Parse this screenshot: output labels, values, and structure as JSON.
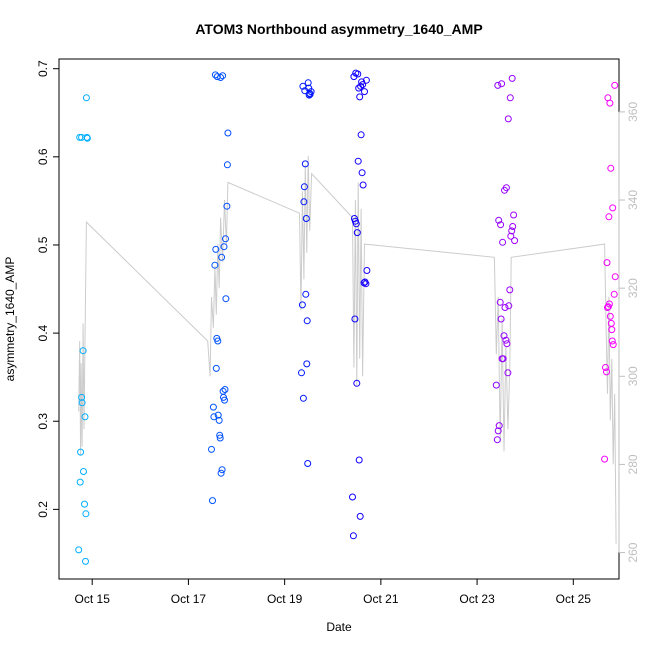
{
  "chart_data": {
    "type": "scatter",
    "title": "ATOM3 Northbound asymmetry_1640_AMP",
    "xlabel": "Date",
    "ylabel": "asymmetry_1640_AMP",
    "xlim": [
      14.31,
      25.95
    ],
    "ylim": [
      0.121,
      0.711
    ],
    "y_ticks": [
      "0.2",
      "0.3",
      "0.4",
      "0.5",
      "0.6",
      "0.7"
    ],
    "x_ticks": [
      {
        "value": 15,
        "label": "Oct 15"
      },
      {
        "value": 17,
        "label": "Oct 17"
      },
      {
        "value": 19,
        "label": "Oct 19"
      },
      {
        "value": 21,
        "label": "Oct 21"
      },
      {
        "value": 23,
        "label": "Oct 23"
      },
      {
        "value": 25,
        "label": "Oct 25"
      }
    ],
    "y2lim": [
      254,
      372
    ],
    "y2_ticks": [
      "260",
      "280",
      "300",
      "320",
      "340",
      "360"
    ],
    "y2_color": "#bfbfbf",
    "grid": false,
    "line_color": "#cccccc",
    "gradient_colors": [
      "#00bfff",
      "#0000ff",
      "#ff00ff"
    ],
    "secondary_series": {
      "name": "",
      "x": [
        14.72,
        14.74,
        14.76,
        14.77,
        14.79,
        14.81,
        14.83,
        14.86,
        14.88,
        17.4,
        17.45,
        17.48,
        17.52,
        17.55,
        17.58,
        17.61,
        17.64,
        17.67,
        17.71,
        17.75,
        17.79,
        17.82,
        19.31,
        19.34,
        19.37,
        19.4,
        19.43,
        19.46,
        19.49,
        19.52,
        19.56,
        20.41,
        20.44,
        20.47,
        20.5,
        20.53,
        20.56,
        20.59,
        20.62,
        20.66,
        23.36,
        23.4,
        23.44,
        23.48,
        23.52,
        23.56,
        23.6,
        23.64,
        23.68,
        23.71,
        25.65,
        25.68,
        25.71,
        25.74,
        25.77,
        25.8,
        25.83,
        25.86,
        25.89
      ],
      "values": [
        292,
        308,
        282,
        303,
        284,
        312,
        288,
        318,
        335,
        308,
        300,
        318,
        311,
        325,
        314,
        330,
        320,
        336,
        326,
        340,
        330,
        344,
        337,
        315,
        342,
        322,
        348,
        328,
        350,
        333,
        346,
        336,
        302,
        340,
        298,
        344,
        304,
        338,
        300,
        330,
        327,
        305,
        318,
        285,
        313,
        283,
        307,
        288,
        302,
        327,
        330,
        312,
        296,
        318,
        290,
        304,
        280,
        296,
        262
      ]
    },
    "series": [
      {
        "x": [
          14.72,
          14.75,
          14.76,
          14.78,
          14.79,
          14.81,
          14.82,
          14.84,
          14.85,
          14.86,
          14.87,
          14.88,
          14.89,
          14.9,
          14.74,
          14.78
        ],
        "values": [
          0.154,
          0.231,
          0.265,
          0.327,
          0.321,
          0.38,
          0.243,
          0.206,
          0.305,
          0.141,
          0.195,
          0.667,
          0.622,
          0.621,
          0.622,
          0.622
        ]
      },
      {
        "x": [
          17.48,
          17.5,
          17.52,
          17.53,
          17.55,
          17.57,
          17.58,
          17.59,
          17.61,
          17.62,
          17.64,
          17.65,
          17.66,
          17.68,
          17.7,
          17.72,
          17.73,
          17.75,
          17.76,
          17.78,
          17.8,
          17.81,
          17.82,
          17.56,
          17.6,
          17.67,
          17.71,
          17.74,
          17.77,
          17.69
        ],
        "values": [
          0.268,
          0.21,
          0.316,
          0.305,
          0.477,
          0.495,
          0.36,
          0.394,
          0.391,
          0.307,
          0.301,
          0.284,
          0.281,
          0.241,
          0.245,
          0.334,
          0.327,
          0.324,
          0.336,
          0.439,
          0.544,
          0.591,
          0.627,
          0.693,
          0.691,
          0.69,
          0.692,
          0.498,
          0.507,
          0.486
        ]
      },
      {
        "x": [
          19.35,
          19.37,
          19.39,
          19.4,
          19.41,
          19.43,
          19.44,
          19.46,
          19.47,
          19.48,
          19.49,
          19.5,
          19.52,
          19.53,
          19.55,
          19.38,
          19.42,
          19.45,
          19.51
        ],
        "values": [
          0.355,
          0.432,
          0.326,
          0.549,
          0.566,
          0.592,
          0.444,
          0.365,
          0.414,
          0.252,
          0.684,
          0.678,
          0.672,
          0.671,
          0.674,
          0.68,
          0.675,
          0.53,
          0.67
        ]
      },
      {
        "x": [
          20.41,
          20.43,
          20.45,
          20.47,
          20.49,
          20.51,
          20.53,
          20.55,
          20.57,
          20.59,
          20.61,
          20.63,
          20.65,
          20.67,
          20.69,
          20.71,
          20.46,
          20.5,
          20.54,
          20.58,
          20.62,
          20.66,
          20.7,
          20.44,
          20.48,
          20.52,
          20.56,
          20.6
        ],
        "values": [
          0.214,
          0.17,
          0.53,
          0.527,
          0.524,
          0.514,
          0.595,
          0.256,
          0.192,
          0.625,
          0.582,
          0.568,
          0.457,
          0.458,
          0.456,
          0.471,
          0.416,
          0.343,
          0.678,
          0.68,
          0.682,
          0.674,
          0.687,
          0.691,
          0.695,
          0.694,
          0.668,
          0.685
        ]
      },
      {
        "x": [
          23.4,
          23.42,
          23.44,
          23.46,
          23.48,
          23.5,
          23.52,
          23.54,
          23.56,
          23.58,
          23.6,
          23.62,
          23.64,
          23.66,
          23.68,
          23.7,
          23.72,
          23.74,
          23.76,
          23.78,
          23.45,
          23.49,
          23.53,
          23.57,
          23.61,
          23.65,
          23.69,
          23.73,
          23.43,
          23.51
        ],
        "values": [
          0.341,
          0.279,
          0.289,
          0.295,
          0.435,
          0.416,
          0.371,
          0.371,
          0.397,
          0.429,
          0.392,
          0.388,
          0.355,
          0.431,
          0.449,
          0.51,
          0.516,
          0.521,
          0.534,
          0.505,
          0.528,
          0.523,
          0.503,
          0.562,
          0.565,
          0.643,
          0.667,
          0.689,
          0.681,
          0.683
        ]
      },
      {
        "x": [
          25.65,
          25.67,
          25.69,
          25.71,
          25.73,
          25.75,
          25.77,
          25.79,
          25.81,
          25.83,
          25.85,
          25.87,
          25.7,
          25.74,
          25.78,
          25.82,
          25.86,
          25.72,
          25.76,
          25.8
        ],
        "values": [
          0.257,
          0.361,
          0.356,
          0.429,
          0.43,
          0.433,
          0.419,
          0.411,
          0.391,
          0.387,
          0.444,
          0.464,
          0.48,
          0.532,
          0.587,
          0.542,
          0.681,
          0.667,
          0.661,
          0.404
        ]
      }
    ]
  }
}
